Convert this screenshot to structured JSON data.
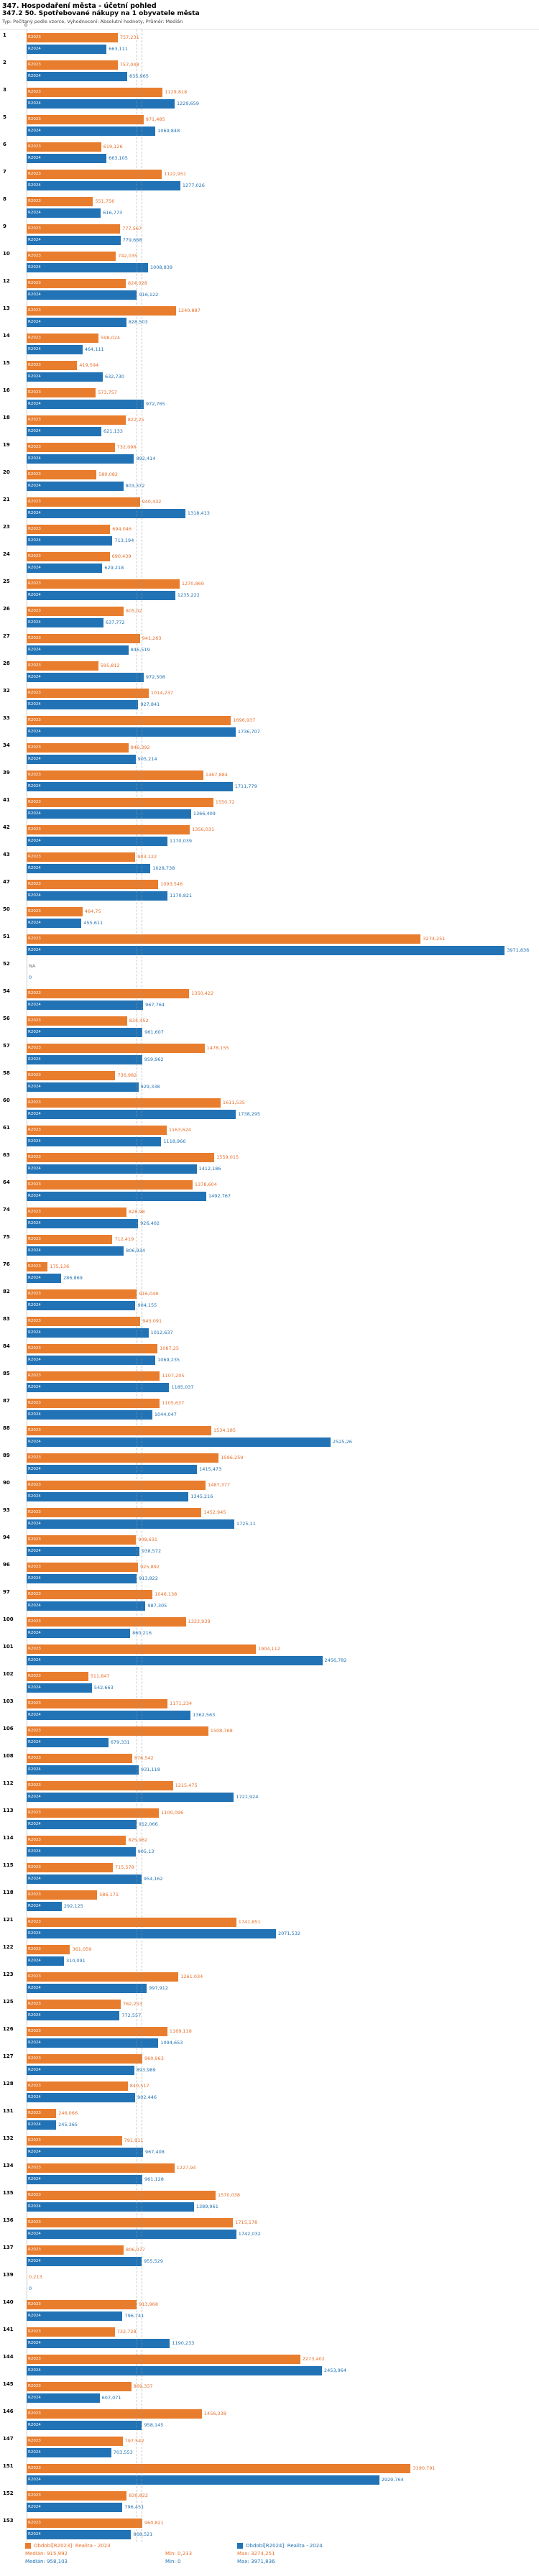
{
  "header": {
    "title": "347. Hospodaření města - účetní pohled",
    "subtitle": "347.2 50. Spotřebované nákupy na 1 obyvatele města",
    "meta": "Typ: Počítaný podle vzorce, Vyhodnocení: Absolutní hodnoty, Průměr: Medián"
  },
  "axis": {
    "zero": "0"
  },
  "colors": {
    "r2023": "#e87d2e",
    "r2024": "#2273b5"
  },
  "series": [
    {
      "id": "R2023",
      "label": "R2023",
      "legend": "Období[R2023]: Realita - 2023",
      "median": "915,992",
      "min": "0,213",
      "max": "3274,251"
    },
    {
      "id": "R2024",
      "label": "R2024",
      "legend": "Období[R2024]: Realita - 2024",
      "median": "958,103",
      "min": "0",
      "max": "3971,836"
    }
  ],
  "stats_labels": {
    "median": "Medián:",
    "min": "Min:",
    "max": "Max:"
  },
  "chart_data": {
    "type": "bar",
    "orientation": "horizontal",
    "x_axis": {
      "min": 0,
      "max": 4000,
      "tick_shown": "0"
    },
    "legend_position": "bottom",
    "rows": [
      {
        "rank": "1",
        "R2023": "757,231",
        "R2024": "663,111"
      },
      {
        "rank": "2",
        "R2023": "757,048",
        "R2024": "835,965"
      },
      {
        "rank": "3",
        "R2023": "1129,818",
        "R2024": "1229,659"
      },
      {
        "rank": "5",
        "R2023": "971,485",
        "R2024": "1069,848"
      },
      {
        "rank": "6",
        "R2023": "619,126",
        "R2024": "663,105"
      },
      {
        "rank": "7",
        "R2023": "1122,951",
        "R2024": "1277,026"
      },
      {
        "rank": "8",
        "R2023": "551,756",
        "R2024": "616,773"
      },
      {
        "rank": "9",
        "R2023": "777,567",
        "R2024": "779,668"
      },
      {
        "rank": "10",
        "R2023": "742,035",
        "R2024": "1008,839"
      },
      {
        "rank": "12",
        "R2023": "824,028",
        "R2024": "916,122"
      },
      {
        "rank": "13",
        "R2023": "1240,887",
        "R2024": "828,503"
      },
      {
        "rank": "14",
        "R2023": "598,024",
        "R2024": "464,111"
      },
      {
        "rank": "15",
        "R2023": "419,594",
        "R2024": "632,730"
      },
      {
        "rank": "16",
        "R2023": "573,757",
        "R2024": "972,765"
      },
      {
        "rank": "18",
        "R2023": "822,25",
        "R2024": "621,133"
      },
      {
        "rank": "19",
        "R2023": "732,098",
        "R2024": "892,414"
      },
      {
        "rank": "20",
        "R2023": "580,082",
        "R2024": "803,372"
      },
      {
        "rank": "21",
        "R2023": "940,432",
        "R2024": "1318,413"
      },
      {
        "rank": "23",
        "R2023": "694,046",
        "R2024": "713,194"
      },
      {
        "rank": "24",
        "R2023": "690,439",
        "R2024": "629,218"
      },
      {
        "rank": "25",
        "R2023": "1270,869",
        "R2024": "1235,222"
      },
      {
        "rank": "26",
        "R2023": "805,02",
        "R2024": "637,772"
      },
      {
        "rank": "27",
        "R2023": "941,263",
        "R2024": "846,519"
      },
      {
        "rank": "28",
        "R2023": "595,812",
        "R2024": "972,508"
      },
      {
        "rank": "32",
        "R2023": "1014,237",
        "R2024": "927,841"
      },
      {
        "rank": "33",
        "R2023": "1696,937",
        "R2024": "1736,707"
      },
      {
        "rank": "34",
        "R2023": "846,392",
        "R2024": "905,214"
      },
      {
        "rank": "39",
        "R2023": "1467,884",
        "R2024": "1711,779"
      },
      {
        "rank": "41",
        "R2023": "1550,72",
        "R2024": "1366,409"
      },
      {
        "rank": "42",
        "R2023": "1356,031",
        "R2024": "1170,039"
      },
      {
        "rank": "43",
        "R2023": "903,122",
        "R2024": "1028,738"
      },
      {
        "rank": "47",
        "R2023": "1093,546",
        "R2024": "1170,821"
      },
      {
        "rank": "50",
        "R2023": "464,75",
        "R2024": "455,611"
      },
      {
        "rank": "51",
        "R2023": "3274,251",
        "R2024": "3971,836"
      },
      {
        "rank": "52",
        "R2023": "NA",
        "R2024": "0"
      },
      {
        "rank": "54",
        "R2023": "1350,422",
        "R2024": "967,764"
      },
      {
        "rank": "56",
        "R2023": "834,452",
        "R2024": "961,607"
      },
      {
        "rank": "57",
        "R2023": "1478,155",
        "R2024": "959,962"
      },
      {
        "rank": "58",
        "R2023": "736,982",
        "R2024": "929,338"
      },
      {
        "rank": "60",
        "R2023": "1611,535",
        "R2024": "1738,295"
      },
      {
        "rank": "61",
        "R2023": "1163,624",
        "R2024": "1118,966"
      },
      {
        "rank": "63",
        "R2023": "1559,015",
        "R2024": "1412,186"
      },
      {
        "rank": "64",
        "R2023": "1378,604",
        "R2024": "1492,767"
      },
      {
        "rank": "74",
        "R2023": "828,98",
        "R2024": "926,402"
      },
      {
        "rank": "75",
        "R2023": "712,419",
        "R2024": "806,934"
      },
      {
        "rank": "76",
        "R2023": "175,136",
        "R2024": "286,869"
      },
      {
        "rank": "82",
        "R2023": "916,048",
        "R2024": "904,155"
      },
      {
        "rank": "83",
        "R2023": "945,091",
        "R2024": "1012,637"
      },
      {
        "rank": "84",
        "R2023": "1087,25",
        "R2024": "1069,235"
      },
      {
        "rank": "85",
        "R2023": "1107,205",
        "R2024": "1185,037"
      },
      {
        "rank": "87",
        "R2023": "1105,637",
        "R2024": "1044,047"
      },
      {
        "rank": "88",
        "R2023": "1534,185",
        "R2024": "2525,26"
      },
      {
        "rank": "89",
        "R2023": "1596,259",
        "R2024": "1415,473"
      },
      {
        "rank": "90",
        "R2023": "1487,377",
        "R2024": "1345,216"
      },
      {
        "rank": "93",
        "R2023": "1452,945",
        "R2024": "1725,11"
      },
      {
        "rank": "94",
        "R2023": "908,631",
        "R2024": "938,572"
      },
      {
        "rank": "96",
        "R2023": "925,892",
        "R2024": "913,822"
      },
      {
        "rank": "97",
        "R2023": "1046,138",
        "R2024": "987,305"
      },
      {
        "rank": "100",
        "R2023": "1322,939",
        "R2024": "860,216"
      },
      {
        "rank": "101",
        "R2023": "1904,112",
        "R2024": "2456,782"
      },
      {
        "rank": "102",
        "R2023": "511,847",
        "R2024": "542,663"
      },
      {
        "rank": "103",
        "R2023": "1171,234",
        "R2024": "1362,563"
      },
      {
        "rank": "106",
        "R2023": "1508,768",
        "R2024": "679,331"
      },
      {
        "rank": "108",
        "R2023": "876,542",
        "R2024": "931,118"
      },
      {
        "rank": "112",
        "R2023": "1215,475",
        "R2024": "1721,924"
      },
      {
        "rank": "113",
        "R2023": "1100,096",
        "R2024": "912,066"
      },
      {
        "rank": "114",
        "R2023": "825,962",
        "R2024": "905,13"
      },
      {
        "rank": "115",
        "R2023": "715,578",
        "R2024": "954,162"
      },
      {
        "rank": "118",
        "R2023": "586,171",
        "R2024": "292,125"
      },
      {
        "rank": "121",
        "R2023": "1741,851",
        "R2024": "2071,532"
      },
      {
        "rank": "122",
        "R2023": "361,059",
        "R2024": "310,091"
      },
      {
        "rank": "123",
        "R2023": "1261,034",
        "R2024": "997,912"
      },
      {
        "rank": "125",
        "R2023": "782,253",
        "R2024": "772,557"
      },
      {
        "rank": "126",
        "R2023": "1169,118",
        "R2024": "1094,653"
      },
      {
        "rank": "127",
        "R2023": "960,963",
        "R2024": "893,989"
      },
      {
        "rank": "128",
        "R2023": "840,517",
        "R2024": "902,446"
      },
      {
        "rank": "131",
        "R2023": "246,066",
        "R2024": "245,365"
      },
      {
        "rank": "132",
        "R2023": "791,911",
        "R2024": "967,408"
      },
      {
        "rank": "134",
        "R2023": "1227,94",
        "R2024": "961,128"
      },
      {
        "rank": "135",
        "R2023": "1570,038",
        "R2024": "1389,961"
      },
      {
        "rank": "136",
        "R2023": "1715,178",
        "R2024": "1742,032"
      },
      {
        "rank": "137",
        "R2023": "806,077",
        "R2024": "955,529"
      },
      {
        "rank": "139",
        "R2023": "0,213",
        "R2024": "0"
      },
      {
        "rank": "140",
        "R2023": "913,968",
        "R2024": "796,741"
      },
      {
        "rank": "141",
        "R2023": "732,728",
        "R2024": "1190,233"
      },
      {
        "rank": "144",
        "R2023": "2273,402",
        "R2024": "2453,964"
      },
      {
        "rank": "145",
        "R2023": "869,337",
        "R2024": "607,071"
      },
      {
        "rank": "146",
        "R2023": "1456,338",
        "R2024": "958,145"
      },
      {
        "rank": "147",
        "R2023": "797,542",
        "R2024": "703,553"
      },
      {
        "rank": "151",
        "R2023": "3190,791",
        "R2024": "2929,764"
      },
      {
        "rank": "152",
        "R2023": "830,822",
        "R2024": "796,451"
      },
      {
        "rank": "153",
        "R2023": "960,821",
        "R2024": "868,521"
      }
    ]
  }
}
